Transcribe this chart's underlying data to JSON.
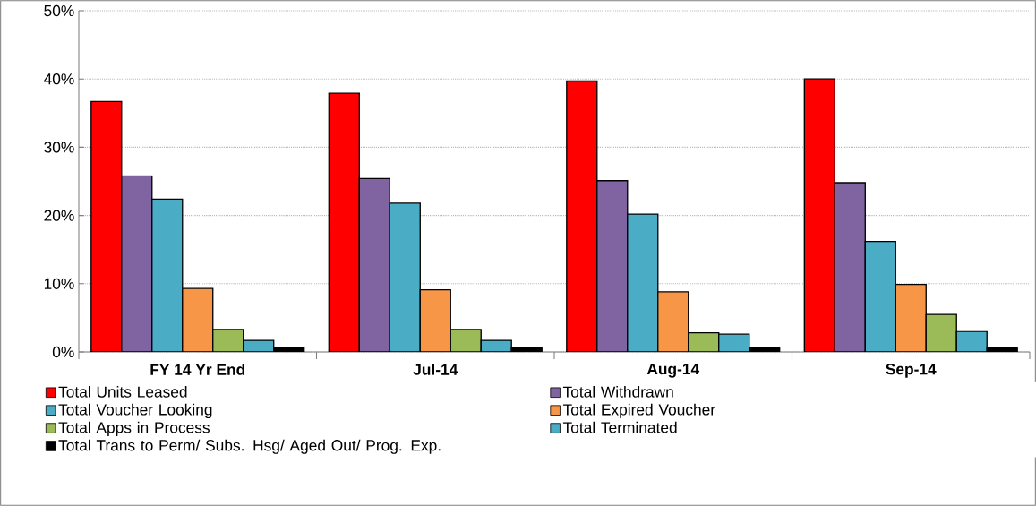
{
  "chart_data": {
    "type": "bar",
    "categories": [
      "FY 14 Yr End",
      "Jul-14",
      "Aug-14",
      "Sep-14"
    ],
    "series": [
      {
        "name": "Total Units Leased",
        "color": "#ff0000",
        "values": [
          36.7,
          37.9,
          39.7,
          40.0
        ]
      },
      {
        "name": "Total Withdrawn",
        "color": "#8064a2",
        "values": [
          25.8,
          25.4,
          25.1,
          24.8
        ]
      },
      {
        "name": "Total Voucher Looking",
        "color": "#4bacc6",
        "values": [
          22.4,
          21.8,
          20.2,
          16.2
        ]
      },
      {
        "name": "Total Expired Voucher",
        "color": "#f79646",
        "values": [
          9.3,
          9.1,
          8.8,
          9.9
        ]
      },
      {
        "name": "Total Apps in Process",
        "color": "#9bbb59",
        "values": [
          3.3,
          3.3,
          2.8,
          5.5
        ]
      },
      {
        "name": "Total Terminated",
        "color": "#4bacc6",
        "values": [
          1.7,
          1.7,
          2.6,
          3.0
        ]
      },
      {
        "name": "Total Trans to Perm/ Subs. Hsg/ Aged Out/ Prog. Exp.",
        "color": "#000000",
        "values": [
          0.6,
          0.6,
          0.6,
          0.6
        ]
      }
    ],
    "ylim": [
      0,
      50
    ],
    "yticks": [
      {
        "value": 0,
        "label": "0%"
      },
      {
        "value": 10,
        "label": "10%"
      },
      {
        "value": 20,
        "label": "20%"
      },
      {
        "value": 30,
        "label": "30%"
      },
      {
        "value": 40,
        "label": "40%"
      },
      {
        "value": 50,
        "label": "50%"
      }
    ],
    "grid": "y",
    "legend": "bottom"
  }
}
